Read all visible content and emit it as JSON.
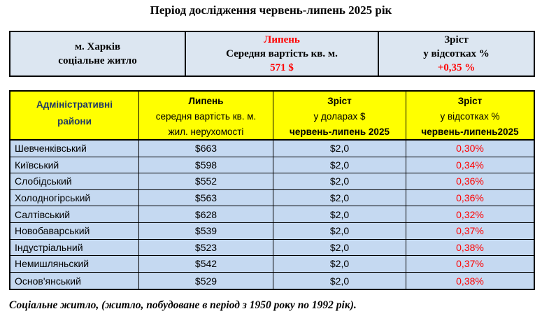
{
  "title": "Період дослідження червень-липень 2025 рік",
  "summary_table": {
    "city_cell": {
      "line1": "м. Харків",
      "line2": "соціальне житло"
    },
    "month_cell": {
      "month": "Липень",
      "label": "Середня вартість кв. м.",
      "value": "571 $"
    },
    "growth_cell": {
      "line1": "Зріст",
      "line2": "у відсотках %",
      "value": "+0,35 %"
    }
  },
  "districts_table": {
    "headers": {
      "col1": {
        "line1": "Адміністративні",
        "line2": "райони"
      },
      "col2": {
        "line1": "Липень",
        "line2": "середня вартість кв. м.",
        "line3": "жил. нерухомості"
      },
      "col3": {
        "line1": "Зріст",
        "line2": "у доларах $",
        "line3": "червень-липень 2025"
      },
      "col4": {
        "line1": "Зріст",
        "line2": "у відсотках %",
        "line3": "червень-липень2025"
      }
    },
    "rows": [
      {
        "district": "Шевченківський",
        "price": "$663",
        "growth_usd": "$2,0",
        "growth_pct": "0,30%"
      },
      {
        "district": "Київський",
        "price": "$598",
        "growth_usd": "$2,0",
        "growth_pct": "0,34%"
      },
      {
        "district": "Слобідський",
        "price": "$552",
        "growth_usd": "$2,0",
        "growth_pct": "0,36%"
      },
      {
        "district": "Холодногірський",
        "price": "$563",
        "growth_usd": "$2,0",
        "growth_pct": "0,36%"
      },
      {
        "district": "Салтівський",
        "price": "$628",
        "growth_usd": "$2,0",
        "growth_pct": "0,32%"
      },
      {
        "district": "Новобаварський",
        "price": "$539",
        "growth_usd": "$2,0",
        "growth_pct": "0,37%"
      },
      {
        "district": "Індустріальний",
        "price": "$523",
        "growth_usd": "$2,0",
        "growth_pct": "0,38%"
      },
      {
        "district": "Немишляньский",
        "price": "$542",
        "growth_usd": "$2,0",
        "growth_pct": "0,37%"
      },
      {
        "district": "Основ'янський",
        "price": "$529",
        "growth_usd": "$2,0",
        "growth_pct": "0,38%"
      }
    ]
  },
  "footnote": "Соціальне житло, (житло, побудоване в період з 1950 року по 1992 рік).",
  "colors": {
    "accent_red": "#ff0000",
    "header_yellow": "#ffff00",
    "row_blue": "#c5d9f1",
    "summary_blue": "#dce6f1",
    "district_header_navy": "#1f3864"
  }
}
